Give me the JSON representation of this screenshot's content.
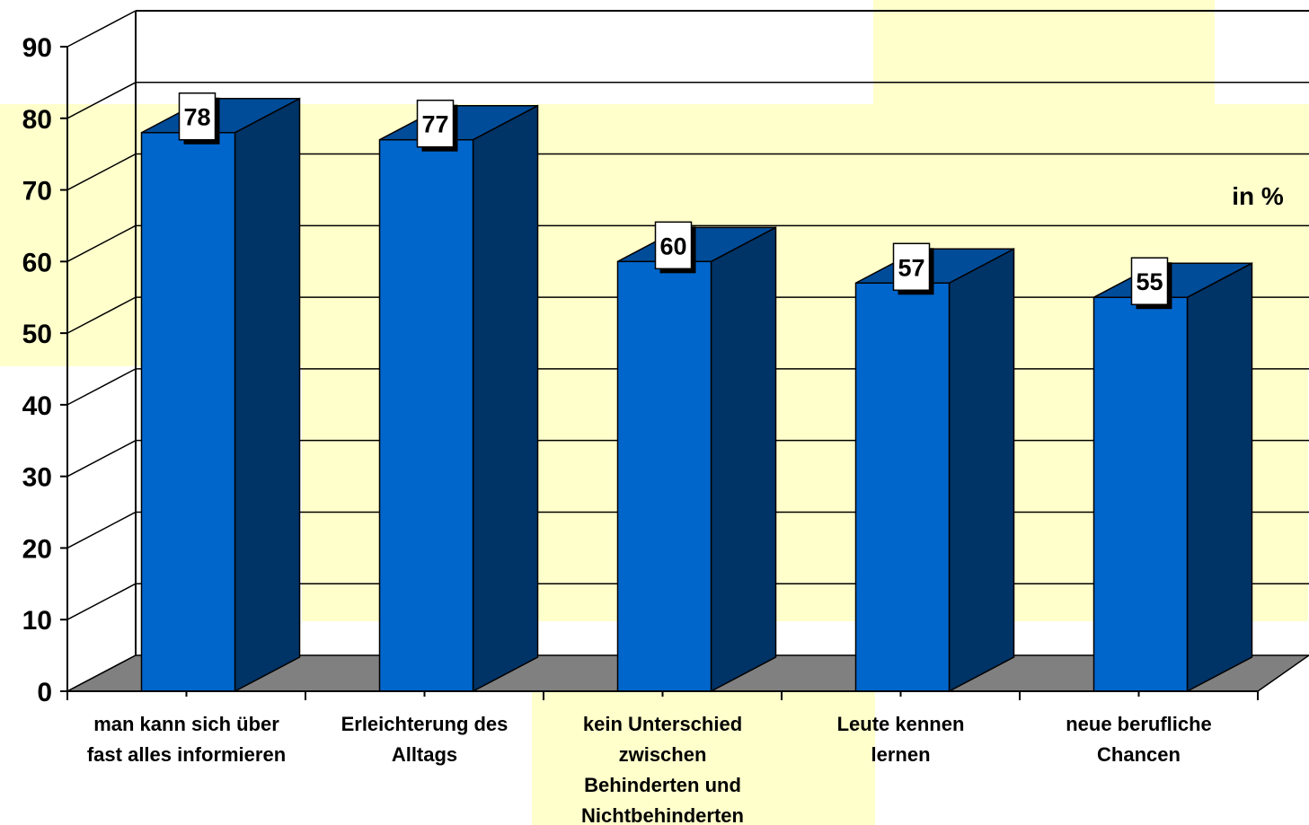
{
  "chart_data": {
    "type": "bar",
    "categories": [
      [
        "man kann sich über",
        "fast alles informieren"
      ],
      [
        "Erleichterung des",
        "Alltags"
      ],
      [
        "kein Unterschied",
        "zwischen",
        "Behinderten und",
        "Nichtbehinderten"
      ],
      [
        "Leute kennen",
        "lernen"
      ],
      [
        "neue berufliche",
        "Chancen"
      ]
    ],
    "values": [
      78,
      77,
      60,
      57,
      55
    ],
    "data_labels": [
      "78",
      "77",
      "60",
      "57",
      "55"
    ],
    "ylim": [
      0,
      90
    ],
    "yticks": [
      0,
      10,
      20,
      30,
      40,
      50,
      60,
      70,
      80,
      90
    ],
    "unit_label": "in %",
    "grid": true,
    "three_d": true,
    "colors": {
      "bar_front": "#0066CC",
      "bar_side": "#003366",
      "bar_top": "#004C99",
      "floor": "#808080",
      "grid": "#000000",
      "highlight": "#FFFFCC",
      "background": "#FFFFFF"
    }
  }
}
